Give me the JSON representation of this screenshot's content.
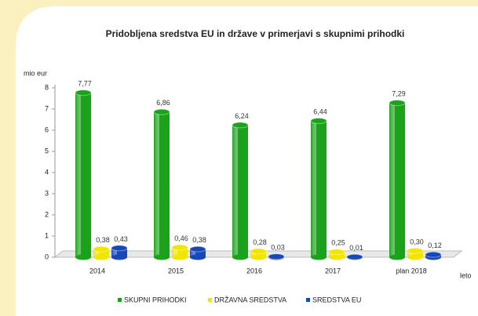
{
  "chart_data": {
    "type": "bar",
    "title": "Pridobljena sredstva EU in države v primerjavi s skupnimi prihodki",
    "ylabel": "mio eur",
    "xlabel": "leto",
    "categories": [
      "2014",
      "2015",
      "2016",
      "2017",
      "plan 2018"
    ],
    "series": [
      {
        "name": "SKUPNI PRIHODKI",
        "color": "#1aa31a",
        "values": [
          7.77,
          6.86,
          6.24,
          6.44,
          7.29
        ],
        "value_labels": [
          "7,77",
          "6,86",
          "6,24",
          "6,44",
          "7,29"
        ]
      },
      {
        "name": "DRŽAVNA SREDSTVA",
        "color": "#f2e600",
        "values": [
          0.38,
          0.46,
          0.28,
          0.25,
          0.3
        ],
        "value_labels": [
          "0,38",
          "0,46",
          "0,28",
          "0,25",
          "0,30"
        ]
      },
      {
        "name": "SREDSTVA EU",
        "color": "#1848b8",
        "values": [
          0.43,
          0.38,
          0.03,
          0.01,
          0.12
        ],
        "value_labels": [
          "0,43",
          "0,38",
          "0,03",
          "0,01",
          "0,12"
        ]
      }
    ],
    "ylim": [
      0,
      8
    ],
    "yticks": [
      0,
      1,
      2,
      3,
      4,
      5,
      6,
      7,
      8
    ],
    "grid": false
  }
}
